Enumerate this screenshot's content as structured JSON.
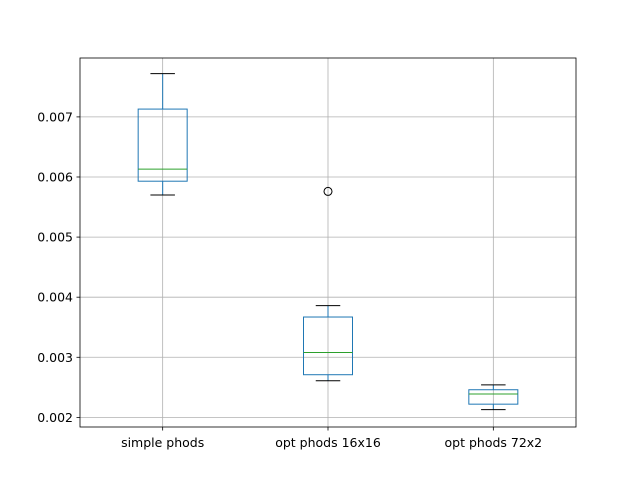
{
  "chart_data": {
    "type": "box",
    "categories": [
      "simple phods",
      "opt phods 16x16",
      "opt phods 72x2"
    ],
    "boxes": [
      {
        "label": "simple phods",
        "whisker_low": 0.0057,
        "q1": 0.00593,
        "median": 0.00613,
        "q3": 0.00713,
        "whisker_high": 0.00772,
        "outliers": []
      },
      {
        "label": "opt phods 16x16",
        "whisker_low": 0.00261,
        "q1": 0.00271,
        "median": 0.00308,
        "q3": 0.00367,
        "whisker_high": 0.00386,
        "outliers": [
          0.00576
        ]
      },
      {
        "label": "opt phods 72x2",
        "whisker_low": 0.00213,
        "q1": 0.00222,
        "median": 0.00239,
        "q3": 0.00246,
        "whisker_high": 0.00254,
        "outliers": []
      }
    ],
    "yticks": [
      0.002,
      0.003,
      0.004,
      0.005,
      0.006,
      0.007
    ],
    "ytick_labels": [
      "0.002",
      "0.003",
      "0.004",
      "0.005",
      "0.006",
      "0.007"
    ],
    "ylim": [
      0.00184,
      0.00798
    ],
    "grid": true,
    "colors": {
      "box": "#1f77b4",
      "median": "#2ca02c",
      "whisker_cap": "#000000",
      "grid": "#b0b0b0"
    }
  }
}
